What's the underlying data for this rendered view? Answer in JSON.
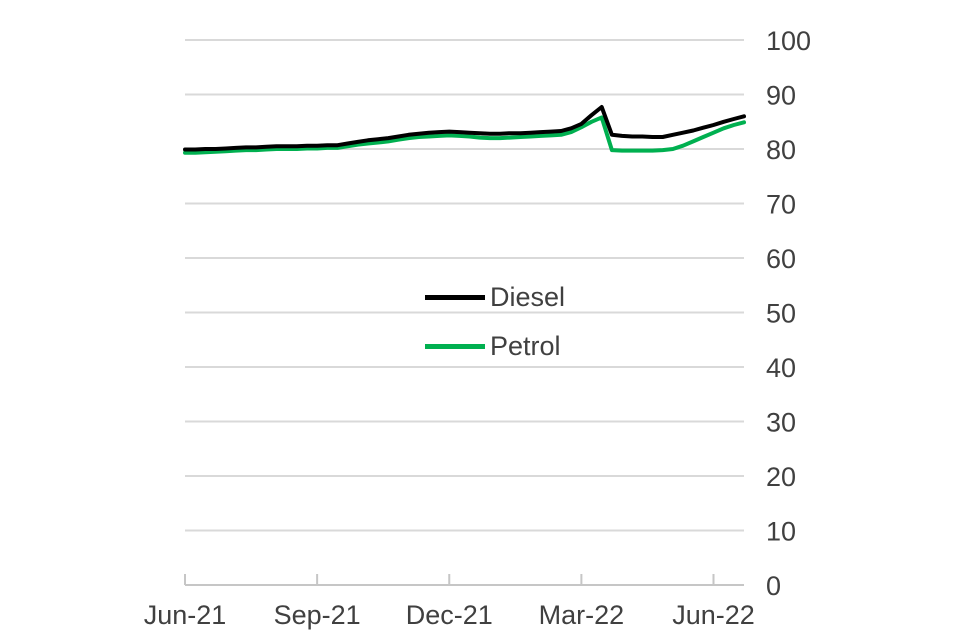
{
  "chart_data": {
    "type": "line",
    "title": "",
    "xlabel": "",
    "ylabel": "",
    "ylim": [
      0,
      100
    ],
    "y_tick_step": 10,
    "y_tick_labels": [
      "0",
      "10",
      "20",
      "30",
      "40",
      "50",
      "60",
      "70",
      "80",
      "90",
      "100"
    ],
    "x_tick_labels": [
      "Jun-21",
      "Sep-21",
      "Dec-21",
      "Mar-22",
      "Jun-22"
    ],
    "x_tick_weeks": [
      0,
      13,
      26,
      39,
      52
    ],
    "weeks_total": 55,
    "grid": "horizontal",
    "legend_position": "center",
    "series": [
      {
        "name": "Diesel",
        "color": "#000000",
        "values": [
          79.9,
          79.9,
          80.0,
          80.0,
          80.1,
          80.2,
          80.3,
          80.3,
          80.4,
          80.5,
          80.5,
          80.5,
          80.6,
          80.6,
          80.7,
          80.7,
          81.0,
          81.3,
          81.6,
          81.8,
          82.0,
          82.3,
          82.6,
          82.8,
          83.0,
          83.1,
          83.2,
          83.1,
          83.0,
          82.9,
          82.8,
          82.8,
          82.9,
          82.9,
          83.0,
          83.1,
          83.2,
          83.3,
          83.8,
          84.6,
          86.2,
          87.7,
          82.6,
          82.4,
          82.3,
          82.3,
          82.2,
          82.2,
          82.6,
          83.0,
          83.4,
          83.9,
          84.4,
          85.0,
          85.5,
          86.0
        ]
      },
      {
        "name": "Petrol",
        "color": "#00b050",
        "values": [
          79.3,
          79.3,
          79.4,
          79.5,
          79.6,
          79.7,
          79.8,
          79.8,
          79.9,
          80.0,
          80.0,
          80.0,
          80.1,
          80.1,
          80.2,
          80.2,
          80.5,
          80.8,
          81.0,
          81.2,
          81.4,
          81.7,
          82.0,
          82.2,
          82.3,
          82.4,
          82.5,
          82.4,
          82.3,
          82.1,
          82.0,
          82.0,
          82.1,
          82.2,
          82.3,
          82.4,
          82.5,
          82.6,
          83.1,
          84.0,
          85.0,
          85.8,
          79.8,
          79.7,
          79.7,
          79.7,
          79.7,
          79.8,
          80.0,
          80.6,
          81.4,
          82.2,
          83.0,
          83.8,
          84.4,
          84.9
        ]
      }
    ]
  },
  "style": {
    "grid_color": "#d9d9d9",
    "axis_color": "#c6c6c6",
    "text_color": "#404040",
    "background": "#ffffff"
  }
}
